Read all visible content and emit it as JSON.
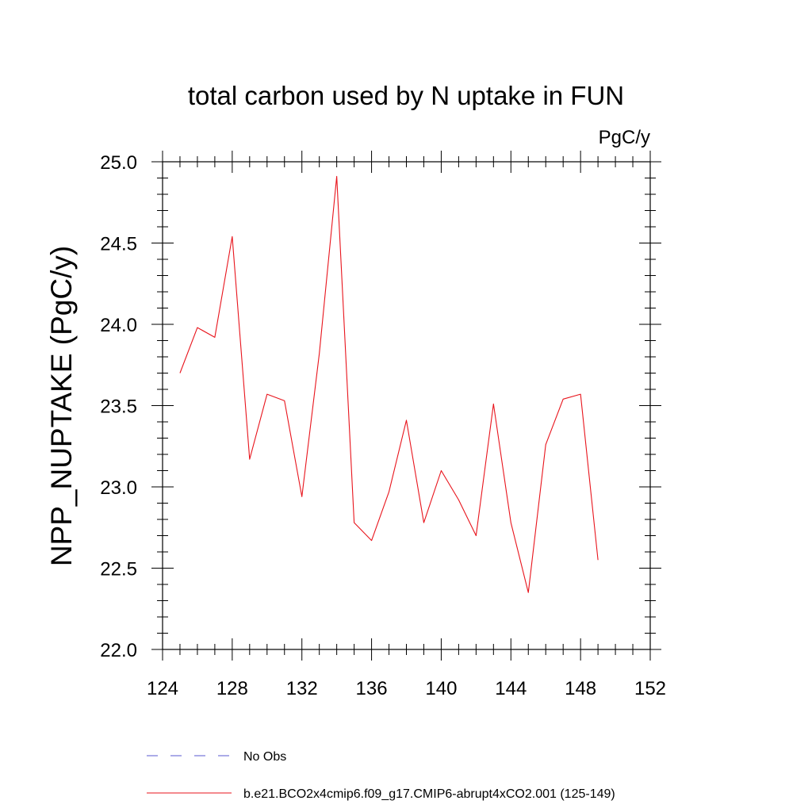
{
  "chart_data": {
    "type": "line",
    "title": "total carbon used by N uptake in FUN",
    "units_label": "PgC/y",
    "ylabel": "NPP_NUPTAKE  (PgC/y)",
    "xlabel": "",
    "xlim": [
      124,
      152
    ],
    "ylim": [
      22.0,
      25.0
    ],
    "x_ticks": [
      "124",
      "128",
      "132",
      "136",
      "140",
      "144",
      "148",
      "152"
    ],
    "y_ticks": [
      "22.0",
      "22.5",
      "23.0",
      "23.5",
      "24.0",
      "24.5",
      "25.0"
    ],
    "grid": false,
    "legend_position": "bottom",
    "series": [
      {
        "name": "b.e21.BCO2x4cmip6.f09_g17.CMIP6-abrupt4xCO2.001 (125-149)",
        "color": "#e8141c",
        "style": "solid",
        "x": [
          125,
          126,
          127,
          128,
          129,
          130,
          131,
          132,
          133,
          134,
          135,
          136,
          137,
          138,
          139,
          140,
          141,
          142,
          143,
          144,
          145,
          146,
          147,
          148,
          149
        ],
        "values": [
          23.7,
          23.98,
          23.92,
          24.54,
          23.17,
          23.57,
          23.53,
          22.94,
          23.82,
          24.91,
          22.78,
          22.67,
          22.97,
          23.41,
          22.78,
          23.1,
          22.92,
          22.7,
          23.51,
          22.78,
          22.35,
          23.26,
          23.54,
          23.57,
          22.55
        ]
      }
    ],
    "legend": [
      {
        "label": "No Obs",
        "color": "#5a5ad0",
        "style": "dashed"
      },
      {
        "label": "b.e21.BCO2x4cmip6.f09_g17.CMIP6-abrupt4xCO2.001 (125-149)",
        "color": "#e8141c",
        "style": "solid"
      }
    ]
  }
}
